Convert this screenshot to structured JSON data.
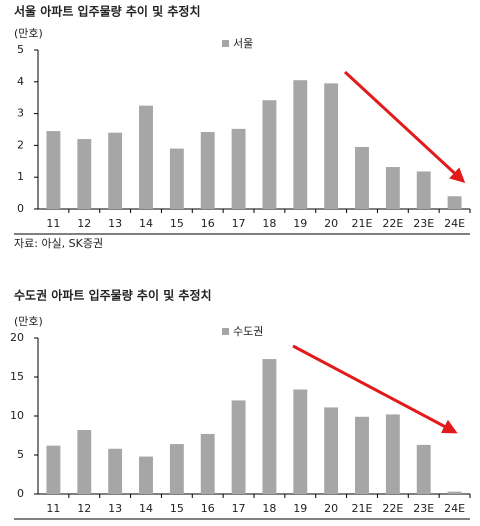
{
  "chart_data": [
    {
      "type": "bar",
      "title": "서울 아파트 입주물량 추이 및 추정치",
      "y_label": "(만호)",
      "categories": [
        "11",
        "12",
        "13",
        "14",
        "15",
        "16",
        "17",
        "18",
        "19",
        "20",
        "21E",
        "22E",
        "23E",
        "24E"
      ],
      "series": [
        {
          "name": "서울",
          "color": "#a6a6a6",
          "values": [
            2.45,
            2.2,
            2.4,
            3.25,
            1.9,
            2.42,
            2.52,
            3.42,
            4.05,
            3.95,
            1.95,
            1.32,
            1.18,
            0.4
          ]
        }
      ],
      "ylim": [
        0,
        5
      ],
      "yticks": [
        0,
        1,
        2,
        3,
        4,
        5
      ],
      "grid": false,
      "source": "자료: 아실, SK증권"
    },
    {
      "type": "bar",
      "title": "수도권 아파트 입주물량 추이 및 추정치",
      "y_label": "(만호)",
      "categories": [
        "11",
        "12",
        "13",
        "14",
        "15",
        "16",
        "17",
        "18",
        "19",
        "20",
        "21E",
        "22E",
        "23E",
        "24E"
      ],
      "series": [
        {
          "name": "수도권",
          "color": "#a6a6a6",
          "values": [
            6.2,
            8.2,
            5.8,
            4.8,
            6.4,
            7.7,
            12,
            17.3,
            13.4,
            11.1,
            9.9,
            10.2,
            6.3,
            0.3
          ]
        }
      ],
      "ylim": [
        0,
        20
      ],
      "yticks": [
        0,
        5,
        10,
        15,
        20
      ],
      "grid": false
    }
  ]
}
